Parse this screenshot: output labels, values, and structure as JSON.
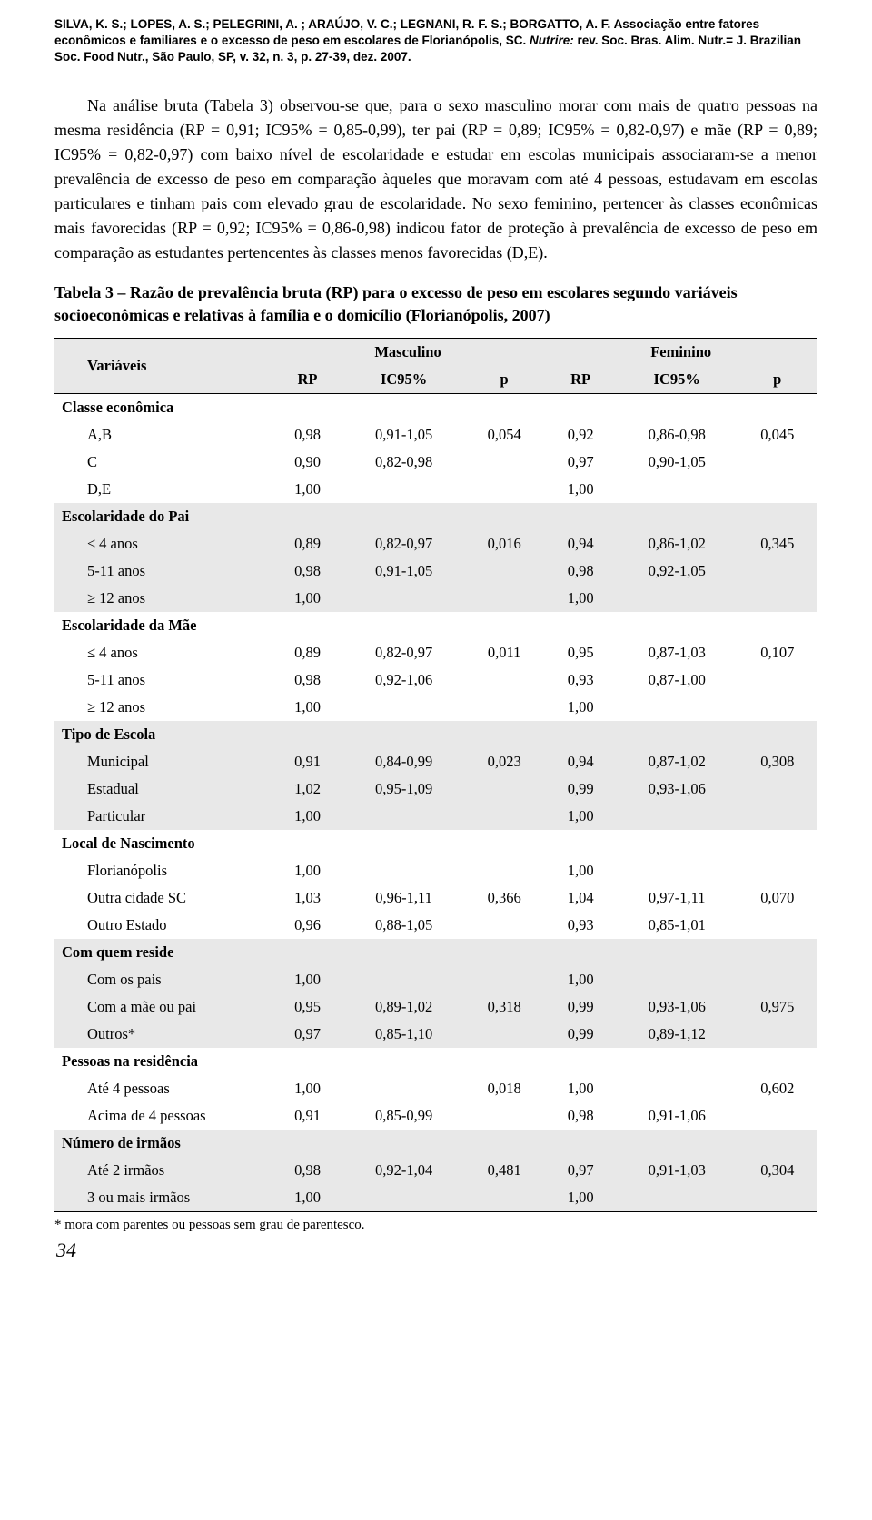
{
  "citation": {
    "authors": "SILVA, K. S.; LOPES, A. S.; PELEGRINI, A. ; ARAÚJO, V. C.; LEGNANI, R. F. S.; BORGATTO, A. F.",
    "title_plain": "Associação entre fatores econômicos e familiares e o excesso de peso em escolares de Florianópolis, SC.",
    "journal_italic": "Nutrire:",
    "journal_rest": "rev. Soc. Bras. Alim. Nutr.= J. Brazilian Soc. Food Nutr., São Paulo, SP, v. 32, n. 3, p. 27-39, dez. 2007."
  },
  "paragraph": "Na análise bruta (Tabela 3) observou-se que, para o sexo masculino morar com mais de quatro pessoas na mesma residência (RP = 0,91; IC95% = 0,85-0,99), ter pai (RP = 0,89; IC95% = 0,82-0,97) e mãe (RP = 0,89; IC95% = 0,82-0,97) com baixo nível de escolaridade e estudar em escolas municipais associaram-se a menor prevalência de excesso de peso em comparação àqueles que moravam com até 4 pessoas, estudavam em escolas particulares e tinham pais com elevado grau de escolaridade. No sexo feminino, pertencer às classes econômicas mais favorecidas (RP = 0,92; IC95% = 0,86-0,98) indicou fator de proteção à prevalência de excesso de peso em comparação as estudantes pertencentes às classes menos favorecidas (D,E).",
  "table_caption_lead": "Tabela 3 – ",
  "table_caption_rest": "Razão de prevalência bruta (RP) para o excesso de peso em escolares segundo variáveis socioeconômicas e relativas à família e o domicílio (Florianópolis, 2007)",
  "headers": {
    "variaveis": "Variáveis",
    "masc": "Masculino",
    "fem": "Feminino",
    "rp": "RP",
    "ic": "IC95%",
    "p": "p"
  },
  "groups": [
    {
      "name": "Classe econômica",
      "shade": false,
      "rows": [
        {
          "label": "A,B",
          "m_rp": "0,98",
          "m_ic": "0,91-1,05",
          "m_p": "0,054",
          "f_rp": "0,92",
          "f_ic": "0,86-0,98",
          "f_p": "0,045"
        },
        {
          "label": "C",
          "m_rp": "0,90",
          "m_ic": "0,82-0,98",
          "m_p": "",
          "f_rp": "0,97",
          "f_ic": "0,90-1,05",
          "f_p": ""
        },
        {
          "label": "D,E",
          "m_rp": "1,00",
          "m_ic": "",
          "m_p": "",
          "f_rp": "1,00",
          "f_ic": "",
          "f_p": ""
        }
      ]
    },
    {
      "name": "Escolaridade do Pai",
      "shade": true,
      "rows": [
        {
          "label": "≤ 4 anos",
          "m_rp": "0,89",
          "m_ic": "0,82-0,97",
          "m_p": "0,016",
          "f_rp": "0,94",
          "f_ic": "0,86-1,02",
          "f_p": "0,345"
        },
        {
          "label": "5-11 anos",
          "m_rp": "0,98",
          "m_ic": "0,91-1,05",
          "m_p": "",
          "f_rp": "0,98",
          "f_ic": "0,92-1,05",
          "f_p": ""
        },
        {
          "label": "≥ 12 anos",
          "m_rp": "1,00",
          "m_ic": "",
          "m_p": "",
          "f_rp": "1,00",
          "f_ic": "",
          "f_p": ""
        }
      ]
    },
    {
      "name": "Escolaridade da Mãe",
      "shade": false,
      "rows": [
        {
          "label": "≤ 4 anos",
          "m_rp": "0,89",
          "m_ic": "0,82-0,97",
          "m_p": "0,011",
          "f_rp": "0,95",
          "f_ic": "0,87-1,03",
          "f_p": "0,107"
        },
        {
          "label": "5-11 anos",
          "m_rp": "0,98",
          "m_ic": "0,92-1,06",
          "m_p": "",
          "f_rp": "0,93",
          "f_ic": "0,87-1,00",
          "f_p": ""
        },
        {
          "label": "≥ 12 anos",
          "m_rp": "1,00",
          "m_ic": "",
          "m_p": "",
          "f_rp": "1,00",
          "f_ic": "",
          "f_p": ""
        }
      ]
    },
    {
      "name": "Tipo de Escola",
      "shade": true,
      "rows": [
        {
          "label": "Municipal",
          "m_rp": "0,91",
          "m_ic": "0,84-0,99",
          "m_p": "0,023",
          "f_rp": "0,94",
          "f_ic": "0,87-1,02",
          "f_p": "0,308"
        },
        {
          "label": "Estadual",
          "m_rp": "1,02",
          "m_ic": "0,95-1,09",
          "m_p": "",
          "f_rp": "0,99",
          "f_ic": "0,93-1,06",
          "f_p": ""
        },
        {
          "label": "Particular",
          "m_rp": "1,00",
          "m_ic": "",
          "m_p": "",
          "f_rp": "1,00",
          "f_ic": "",
          "f_p": ""
        }
      ]
    },
    {
      "name": "Local de Nascimento",
      "shade": false,
      "rows": [
        {
          "label": "Florianópolis",
          "m_rp": "1,00",
          "m_ic": "",
          "m_p": "",
          "f_rp": "1,00",
          "f_ic": "",
          "f_p": ""
        },
        {
          "label": "Outra cidade SC",
          "m_rp": "1,03",
          "m_ic": "0,96-1,11",
          "m_p": "0,366",
          "f_rp": "1,04",
          "f_ic": "0,97-1,11",
          "f_p": "0,070"
        },
        {
          "label": "Outro Estado",
          "m_rp": "0,96",
          "m_ic": "0,88-1,05",
          "m_p": "",
          "f_rp": "0,93",
          "f_ic": "0,85-1,01",
          "f_p": ""
        }
      ]
    },
    {
      "name": "Com quem reside",
      "shade": true,
      "rows": [
        {
          "label": "Com os pais",
          "m_rp": "1,00",
          "m_ic": "",
          "m_p": "",
          "f_rp": "1,00",
          "f_ic": "",
          "f_p": ""
        },
        {
          "label": "Com a mãe ou pai",
          "m_rp": "0,95",
          "m_ic": "0,89-1,02",
          "m_p": "0,318",
          "f_rp": "0,99",
          "f_ic": "0,93-1,06",
          "f_p": "0,975"
        },
        {
          "label": "Outros*",
          "m_rp": "0,97",
          "m_ic": "0,85-1,10",
          "m_p": "",
          "f_rp": "0,99",
          "f_ic": "0,89-1,12",
          "f_p": ""
        }
      ]
    },
    {
      "name": "Pessoas na residência",
      "shade": false,
      "rows": [
        {
          "label": "Até 4 pessoas",
          "m_rp": "1,00",
          "m_ic": "",
          "m_p": "0,018",
          "f_rp": "1,00",
          "f_ic": "",
          "f_p": "0,602"
        },
        {
          "label": "Acima de 4 pessoas",
          "m_rp": "0,91",
          "m_ic": "0,85-0,99",
          "m_p": "",
          "f_rp": "0,98",
          "f_ic": "0,91-1,06",
          "f_p": ""
        }
      ]
    },
    {
      "name": "Número de irmãos",
      "shade": true,
      "rows": [
        {
          "label": "Até 2 irmãos",
          "m_rp": "0,98",
          "m_ic": "0,92-1,04",
          "m_p": "0,481",
          "f_rp": "0,97",
          "f_ic": "0,91-1,03",
          "f_p": "0,304"
        },
        {
          "label": "3 ou mais irmãos",
          "m_rp": "1,00",
          "m_ic": "",
          "m_p": "",
          "f_rp": "1,00",
          "f_ic": "",
          "f_p": ""
        }
      ]
    }
  ],
  "footnote": "* mora com parentes ou pessoas sem grau de parentesco.",
  "pagenum": "34",
  "colors": {
    "shade": "#e8e8e8",
    "text": "#000000",
    "bg": "#ffffff"
  }
}
